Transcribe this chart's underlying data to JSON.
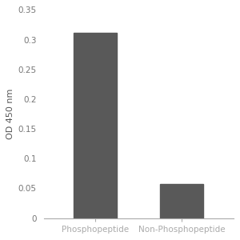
{
  "categories": [
    "Phosphopeptide",
    "Non-Phosphopeptide"
  ],
  "values": [
    0.312,
    0.057
  ],
  "bar_color": "#595959",
  "ylabel": "OD 450 nm",
  "ylim": [
    0,
    0.35
  ],
  "yticks": [
    0,
    0.05,
    0.1,
    0.15,
    0.2,
    0.25,
    0.3,
    0.35
  ],
  "bar_width": 0.5,
  "background_color": "#ffffff",
  "tick_fontsize": 7.5,
  "label_fontsize": 8,
  "ylabel_color": "#555555",
  "tick_color": "#777777",
  "spine_color": "#aaaaaa"
}
